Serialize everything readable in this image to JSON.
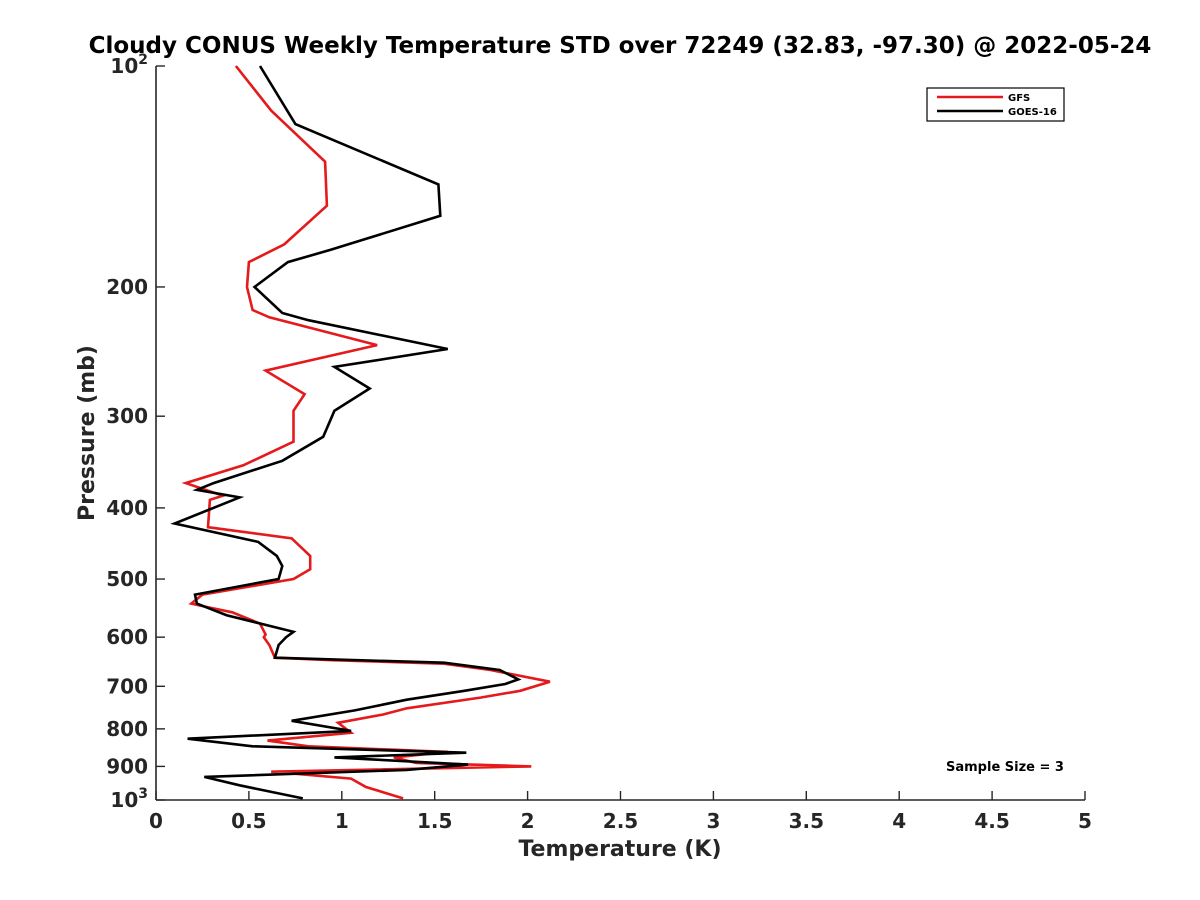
{
  "chart_data": {
    "type": "line",
    "title": "Cloudy CONUS Weekly Temperature STD over 72249 (32.83, -97.30) @ 2022-05-24",
    "xlabel": "Temperature (K)",
    "ylabel": "Pressure (mb)",
    "xlim": [
      0,
      5
    ],
    "ylim": [
      100,
      1000
    ],
    "y_scale": "log",
    "y_reversed": true,
    "grid": false,
    "legend_position": "top-right",
    "x_ticks": [
      "0",
      "0.5",
      "1",
      "1.5",
      "2",
      "2.5",
      "3",
      "3.5",
      "4",
      "4.5",
      "5"
    ],
    "y_ticks": [
      {
        "value": 100,
        "base": "10",
        "exp": "2"
      },
      {
        "value": 200,
        "label": "200"
      },
      {
        "value": 300,
        "label": "300"
      },
      {
        "value": 400,
        "label": "400"
      },
      {
        "value": 500,
        "label": "500"
      },
      {
        "value": 600,
        "label": "600"
      },
      {
        "value": 700,
        "label": "700"
      },
      {
        "value": 800,
        "label": "800"
      },
      {
        "value": 900,
        "label": "900"
      },
      {
        "value": 1000,
        "base": "10",
        "exp": "3"
      }
    ],
    "annotation": "Sample Size = 3",
    "series": [
      {
        "name": "GFS",
        "color": "#e41a1c",
        "points": [
          [
            0.43,
            100
          ],
          [
            0.62,
            115
          ],
          [
            0.91,
            135
          ],
          [
            0.92,
            155
          ],
          [
            0.69,
            175
          ],
          [
            0.5,
            185
          ],
          [
            0.49,
            200
          ],
          [
            0.52,
            215
          ],
          [
            0.61,
            220
          ],
          [
            1.19,
            240
          ],
          [
            0.59,
            260
          ],
          [
            0.8,
            280
          ],
          [
            0.74,
            295
          ],
          [
            0.74,
            325
          ],
          [
            0.47,
            350
          ],
          [
            0.16,
            370
          ],
          [
            0.36,
            385
          ],
          [
            0.29,
            390
          ],
          [
            0.28,
            425
          ],
          [
            0.73,
            440
          ],
          [
            0.83,
            465
          ],
          [
            0.83,
            485
          ],
          [
            0.74,
            500
          ],
          [
            0.25,
            525
          ],
          [
            0.19,
            540
          ],
          [
            0.26,
            545
          ],
          [
            0.41,
            555
          ],
          [
            0.56,
            575
          ],
          [
            0.59,
            595
          ],
          [
            0.58,
            600
          ],
          [
            0.61,
            615
          ],
          [
            0.64,
            640
          ],
          [
            0.95,
            645
          ],
          [
            1.55,
            652
          ],
          [
            1.8,
            665
          ],
          [
            2.12,
            690
          ],
          [
            1.96,
            710
          ],
          [
            1.75,
            725
          ],
          [
            1.35,
            750
          ],
          [
            1.22,
            765
          ],
          [
            0.98,
            785
          ],
          [
            1.05,
            810
          ],
          [
            0.6,
            830
          ],
          [
            0.82,
            845
          ],
          [
            1.57,
            860
          ],
          [
            1.28,
            875
          ],
          [
            1.4,
            890
          ],
          [
            2.02,
            900
          ],
          [
            0.62,
            915
          ],
          [
            1.05,
            935
          ],
          [
            1.13,
            960
          ],
          [
            1.33,
            995
          ]
        ]
      },
      {
        "name": "GOES-16",
        "color": "#000000",
        "points": [
          [
            0.56,
            100
          ],
          [
            0.75,
            120
          ],
          [
            1.52,
            145
          ],
          [
            1.53,
            160
          ],
          [
            0.94,
            178
          ],
          [
            0.71,
            185
          ],
          [
            0.53,
            200
          ],
          [
            0.68,
            217
          ],
          [
            0.82,
            222
          ],
          [
            1.57,
            243
          ],
          [
            0.96,
            257
          ],
          [
            1.15,
            275
          ],
          [
            0.96,
            295
          ],
          [
            0.9,
            320
          ],
          [
            0.68,
            345
          ],
          [
            0.31,
            370
          ],
          [
            0.22,
            378
          ],
          [
            0.45,
            387
          ],
          [
            0.1,
            420
          ],
          [
            0.55,
            445
          ],
          [
            0.65,
            465
          ],
          [
            0.68,
            480
          ],
          [
            0.66,
            500
          ],
          [
            0.21,
            525
          ],
          [
            0.22,
            540
          ],
          [
            0.38,
            560
          ],
          [
            0.74,
            590
          ],
          [
            0.7,
            600
          ],
          [
            0.66,
            615
          ],
          [
            0.64,
            640
          ],
          [
            1.55,
            650
          ],
          [
            1.85,
            665
          ],
          [
            1.95,
            685
          ],
          [
            1.88,
            695
          ],
          [
            1.66,
            710
          ],
          [
            1.35,
            730
          ],
          [
            1.07,
            755
          ],
          [
            0.73,
            780
          ],
          [
            1.05,
            805
          ],
          [
            0.17,
            825
          ],
          [
            0.52,
            845
          ],
          [
            1.67,
            862
          ],
          [
            0.96,
            875
          ],
          [
            1.15,
            880
          ],
          [
            1.68,
            895
          ],
          [
            1.35,
            910
          ],
          [
            0.26,
            930
          ],
          [
            0.45,
            955
          ],
          [
            0.79,
            995
          ]
        ]
      }
    ]
  }
}
